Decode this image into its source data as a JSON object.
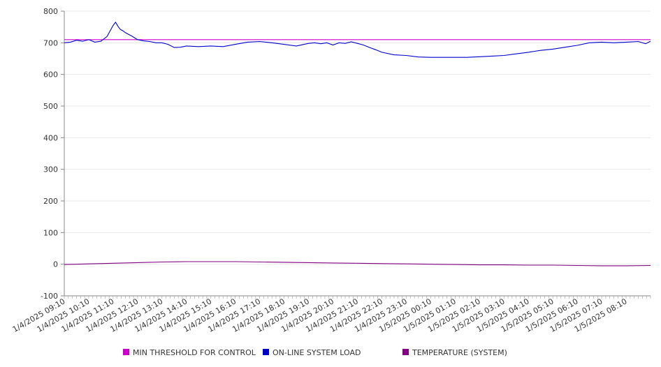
{
  "chart_data": {
    "type": "line",
    "title": "",
    "xlabel": "",
    "ylabel": "",
    "ylim": [
      -100,
      800
    ],
    "y_ticks": [
      -100,
      0,
      100,
      200,
      300,
      400,
      500,
      600,
      700,
      800
    ],
    "x_tick_labels": [
      "1/4/2025 09:10",
      "1/4/2025 10:10",
      "1/4/2025 11:10",
      "1/4/2025 12:10",
      "1/4/2025 13:10",
      "1/4/2025 14:10",
      "1/4/2025 15:10",
      "1/4/2025 16:10",
      "1/4/2025 17:10",
      "1/4/2025 18:10",
      "1/4/2025 19:10",
      "1/4/2025 20:10",
      "1/4/2025 21:10",
      "1/4/2025 22:10",
      "1/4/2025 23:10",
      "1/5/2025 00:10",
      "1/5/2025 01:10",
      "1/5/2025 02:10",
      "1/5/2025 03:10",
      "1/5/2025 04:10",
      "1/5/2025 05:10",
      "1/5/2025 06:10",
      "1/5/2025 07:10",
      "1/5/2025 08:10"
    ],
    "x_range_hours": [
      0,
      24
    ],
    "grid": "horizontal",
    "legend_position": "bottom",
    "series": [
      {
        "name": "MIN THRESHOLD FOR CONTROL",
        "color": "#cc00cc",
        "x_hours": [
          0,
          24
        ],
        "values": [
          710,
          710
        ]
      },
      {
        "name": "ON-LINE SYSTEM LOAD",
        "color": "#0000cc",
        "x_hours": [
          0,
          0.25,
          0.5,
          0.75,
          1.0,
          1.25,
          1.5,
          1.75,
          2.0,
          2.1,
          2.2,
          2.3,
          2.4,
          2.5,
          2.6,
          2.75,
          3.0,
          3.25,
          3.5,
          3.75,
          4.0,
          4.25,
          4.5,
          4.75,
          5.0,
          5.5,
          6.0,
          6.5,
          7.0,
          7.5,
          8.0,
          8.5,
          9.0,
          9.5,
          10.0,
          10.25,
          10.5,
          10.75,
          11.0,
          11.25,
          11.5,
          11.75,
          12.0,
          12.25,
          12.5,
          12.75,
          13.0,
          13.5,
          14.0,
          14.5,
          15.0,
          15.5,
          16.0,
          16.5,
          17.0,
          17.5,
          18.0,
          18.5,
          19.0,
          19.5,
          20.0,
          20.5,
          21.0,
          21.5,
          22.0,
          22.5,
          23.0,
          23.5,
          23.8,
          24.0
        ],
        "values": [
          700,
          702,
          708,
          705,
          710,
          702,
          705,
          720,
          755,
          765,
          752,
          742,
          738,
          732,
          728,
          722,
          710,
          706,
          704,
          700,
          700,
          695,
          685,
          686,
          690,
          688,
          690,
          688,
          695,
          702,
          704,
          700,
          695,
          690,
          698,
          700,
          697,
          700,
          693,
          700,
          698,
          703,
          698,
          693,
          685,
          678,
          670,
          662,
          660,
          655,
          654,
          654,
          654,
          654,
          656,
          658,
          660,
          665,
          670,
          676,
          680,
          686,
          692,
          700,
          702,
          700,
          702,
          704,
          697,
          705
        ]
      },
      {
        "name": "TEMPERATURE (SYSTEM)",
        "color": "#800080",
        "x_hours": [
          0,
          0.5,
          1.0,
          2.0,
          3.0,
          4.0,
          5.0,
          6.0,
          7.0,
          8.0,
          9.0,
          10.0,
          11.0,
          12.0,
          13.0,
          14.0,
          15.0,
          16.0,
          17.0,
          18.0,
          19.0,
          20.0,
          21.0,
          22.0,
          23.0,
          24.0
        ],
        "values": [
          -1,
          0,
          1,
          3,
          5,
          7,
          8,
          8,
          8,
          7,
          6,
          5,
          4,
          3,
          2,
          1,
          0,
          -1,
          -2,
          -2,
          -3,
          -3,
          -4,
          -5,
          -5,
          -4
        ]
      }
    ]
  }
}
